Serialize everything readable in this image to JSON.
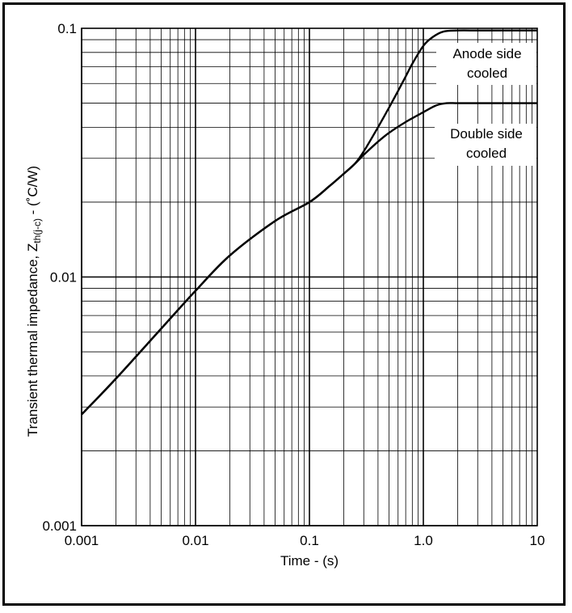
{
  "chart_data": {
    "type": "line",
    "title": "",
    "xlabel": "Time - (s)",
    "ylabel": {
      "main": "Transient thermal impedance, Z",
      "subscript": "th(j-c)",
      "unit": " -  (˚C/W)"
    },
    "x_scale": "log",
    "y_scale": "log",
    "xlim": [
      0.001,
      10
    ],
    "ylim": [
      0.001,
      0.1
    ],
    "x_ticks": [
      0.001,
      0.01,
      0.1,
      1.0,
      10
    ],
    "x_tick_labels": [
      "0.001",
      "0.01",
      "0.1",
      "1.0",
      "10"
    ],
    "y_ticks": [
      0.001,
      0.01,
      0.1
    ],
    "y_tick_labels": [
      "0.001",
      "0.01",
      "0.1"
    ],
    "grid": true,
    "series": [
      {
        "name": "Anode side cooled",
        "x": [
          0.001,
          0.002,
          0.005,
          0.01,
          0.02,
          0.05,
          0.1,
          0.15,
          0.2,
          0.25,
          0.3,
          0.4,
          0.5,
          0.6,
          0.7,
          0.8,
          1.0,
          1.2,
          1.5,
          2,
          3,
          5,
          10
        ],
        "y": [
          0.0028,
          0.0039,
          0.0062,
          0.0088,
          0.0122,
          0.0168,
          0.02,
          0.0232,
          0.026,
          0.0285,
          0.032,
          0.04,
          0.048,
          0.056,
          0.064,
          0.072,
          0.085,
          0.092,
          0.097,
          0.098,
          0.098,
          0.098,
          0.098
        ]
      },
      {
        "name": "Double side cooled",
        "x": [
          0.001,
          0.002,
          0.005,
          0.01,
          0.02,
          0.05,
          0.1,
          0.15,
          0.2,
          0.25,
          0.3,
          0.4,
          0.5,
          0.7,
          1.0,
          1.3,
          1.6,
          2,
          3,
          5,
          10
        ],
        "y": [
          0.0028,
          0.0039,
          0.0062,
          0.0088,
          0.0122,
          0.0168,
          0.02,
          0.0232,
          0.026,
          0.0285,
          0.031,
          0.035,
          0.038,
          0.042,
          0.046,
          0.049,
          0.05,
          0.05,
          0.05,
          0.05,
          0.05
        ]
      }
    ],
    "annotations": [
      {
        "lines": [
          "Anode side",
          "cooled"
        ],
        "series": "Anode side cooled"
      },
      {
        "lines": [
          "Double side",
          "cooled"
        ],
        "series": "Double side cooled"
      }
    ],
    "colors": {
      "line": "#000000",
      "grid": "#000000",
      "background": "#ffffff"
    }
  }
}
